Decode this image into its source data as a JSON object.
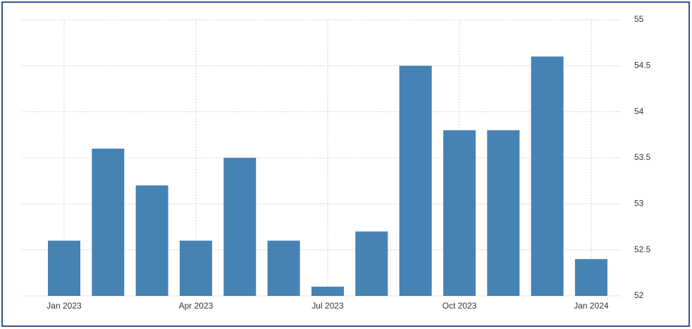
{
  "chart_data": {
    "type": "bar",
    "categories": [
      "Jan 2023",
      null,
      null,
      "Apr 2023",
      null,
      null,
      "Jul 2023",
      null,
      null,
      "Oct 2023",
      null,
      null,
      "Jan 2024"
    ],
    "values": [
      52.6,
      53.6,
      53.2,
      52.6,
      53.5,
      52.6,
      52.1,
      52.7,
      54.5,
      53.8,
      53.8,
      54.6,
      52.4
    ],
    "color": "#4682b4",
    "ylim": [
      52,
      55
    ],
    "yticks": [
      52,
      52.5,
      53,
      53.5,
      54,
      54.5,
      55
    ],
    "grid": true
  }
}
